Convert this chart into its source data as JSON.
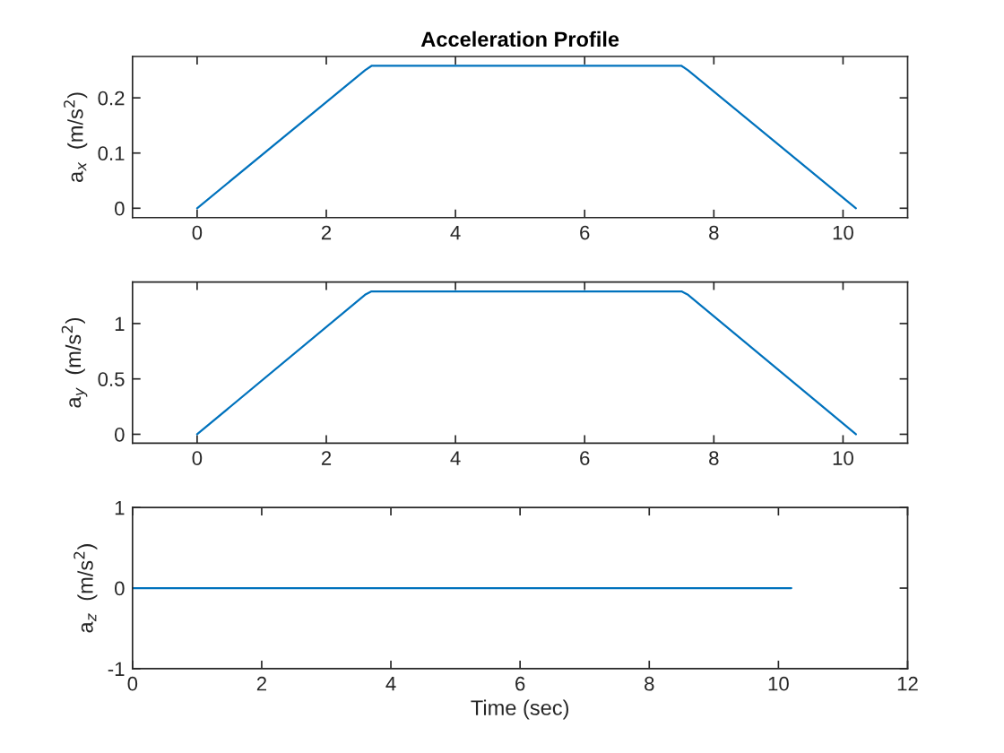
{
  "chart_data": [
    {
      "type": "line",
      "title": "Acceleration Profile",
      "ylabel": "a$_{x}$  (m/s$^{2}$)",
      "x": [
        0,
        2.6,
        2.7,
        7.5,
        7.6,
        10.2
      ],
      "values": [
        0,
        0.25,
        0.258,
        0.258,
        0.25,
        0
      ],
      "color": "#0072bd",
      "xlim": [
        -1,
        11
      ],
      "ylim": [
        -0.017,
        0.275
      ],
      "xticks": [
        0,
        2,
        4,
        6,
        8,
        10
      ],
      "yticks": [
        0,
        0.1,
        0.2
      ]
    },
    {
      "type": "line",
      "ylabel": "a$_{y}$  (m/s$^{2}$)",
      "x": [
        0,
        2.6,
        2.7,
        7.5,
        7.6,
        10.2
      ],
      "values": [
        0,
        1.26,
        1.29,
        1.29,
        1.26,
        0
      ],
      "color": "#0072bd",
      "xlim": [
        -1,
        11
      ],
      "ylim": [
        -0.08,
        1.375
      ],
      "xticks": [
        0,
        2,
        4,
        6,
        8,
        10
      ],
      "yticks": [
        0,
        0.5,
        1
      ]
    },
    {
      "type": "line",
      "xlabel": "Time (sec)",
      "ylabel": "a$_{z}$  (m/s$^{2}$)",
      "x": [
        0,
        10.2
      ],
      "values": [
        0,
        0
      ],
      "color": "#0072bd",
      "xlim": [
        0,
        12
      ],
      "ylim": [
        -1,
        1
      ],
      "xticks": [
        0,
        2,
        4,
        6,
        8,
        10,
        12
      ],
      "yticks": [
        -1,
        0,
        1
      ]
    }
  ]
}
